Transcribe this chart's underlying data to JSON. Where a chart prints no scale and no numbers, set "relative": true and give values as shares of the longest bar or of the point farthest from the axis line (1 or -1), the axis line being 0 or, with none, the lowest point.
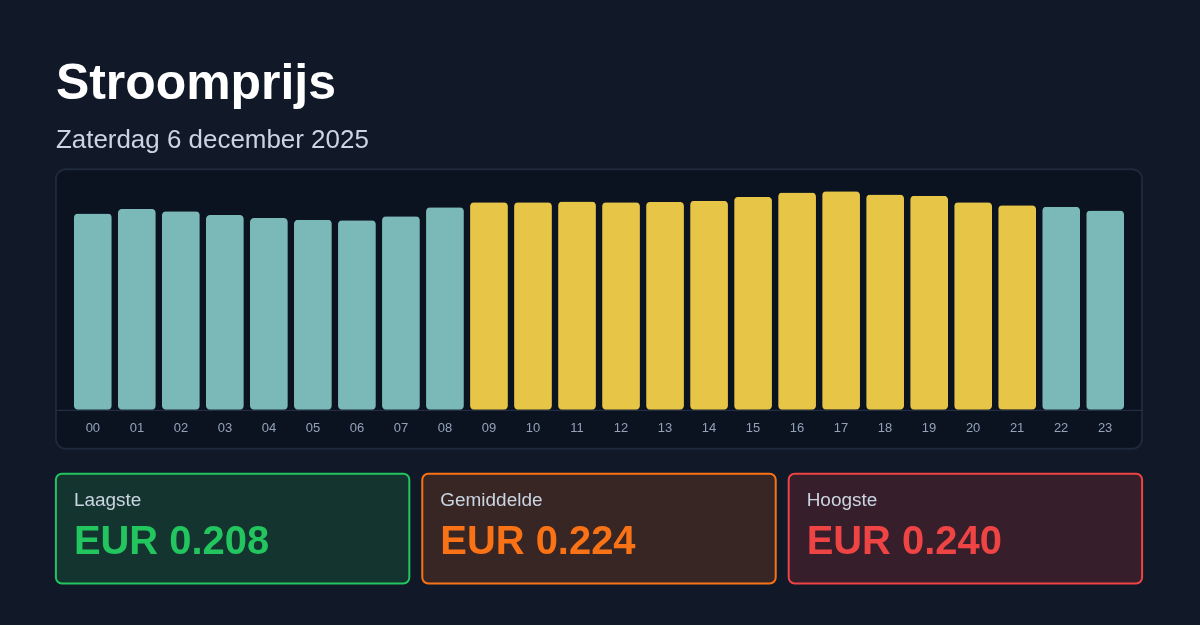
{
  "chart_data": [
    {
      "type": "bar",
      "title": "Stroomprijs",
      "subtitle": "Zaterdag 6 december 2025",
      "relative": true,
      "categories": [
        "00",
        "01",
        "02",
        "03",
        "04",
        "05",
        "06",
        "07",
        "08",
        "09",
        "10",
        "11",
        "12",
        "13",
        "14",
        "15",
        "16",
        "17",
        "18",
        "19",
        "20",
        "21",
        "22",
        "23"
      ],
      "values": [
        0.898,
        0.919,
        0.908,
        0.891,
        0.877,
        0.869,
        0.867,
        0.885,
        0.927,
        0.949,
        0.949,
        0.953,
        0.949,
        0.951,
        0.956,
        0.974,
        0.994,
        1,
        0.985,
        0.979,
        0.949,
        0.936,
        0.929,
        0.912
      ],
      "colors": [
        "#7ab9b8",
        "#7ab9b8",
        "#7ab9b8",
        "#7ab9b8",
        "#7ab9b8",
        "#7ab9b8",
        "#7ab9b8",
        "#7ab9b8",
        "#7ab9b8",
        "#e7c547",
        "#e7c547",
        "#e7c547",
        "#e7c547",
        "#e7c547",
        "#e7c547",
        "#e7c547",
        "#e7c547",
        "#e7c547",
        "#e7c547",
        "#e7c547",
        "#e7c547",
        "#e7c547",
        "#7ab9b8",
        "#7ab9b8"
      ]
    },
    {
      "type": "other",
      "annotations": [
        "Laagste",
        "EUR 0.208",
        "Gemiddelde",
        "EUR 0.224",
        "Hoogste",
        "EUR 0.240"
      ],
      "colors": [
        "#22c55e",
        "#f97316",
        "#ef4444"
      ]
    }
  ]
}
